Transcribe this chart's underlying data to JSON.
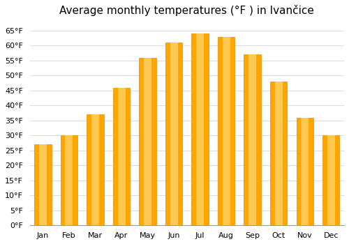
{
  "title": "Average monthly temperatures (°F ) in Ivančice",
  "months": [
    "Jan",
    "Feb",
    "Mar",
    "Apr",
    "May",
    "Jun",
    "Jul",
    "Aug",
    "Sep",
    "Oct",
    "Nov",
    "Dec"
  ],
  "values": [
    27,
    30,
    37,
    46,
    56,
    61,
    64,
    63,
    57,
    48,
    36,
    30
  ],
  "bar_color_main": "#FFA500",
  "bar_color_light": "#FFD060",
  "bar_color_edge": "#E09000",
  "background_color": "#ffffff",
  "plot_bg_color": "#ffffff",
  "grid_color": "#dddddd",
  "ylim": [
    0,
    68
  ],
  "yticks": [
    0,
    5,
    10,
    15,
    20,
    25,
    30,
    35,
    40,
    45,
    50,
    55,
    60,
    65
  ],
  "ytick_labels": [
    "0°F",
    "5°F",
    "10°F",
    "15°F",
    "20°F",
    "25°F",
    "30°F",
    "35°F",
    "40°F",
    "45°F",
    "50°F",
    "55°F",
    "60°F",
    "65°F"
  ],
  "figsize": [
    5.0,
    3.5
  ],
  "dpi": 100,
  "title_fontsize": 11,
  "tick_fontsize": 8
}
